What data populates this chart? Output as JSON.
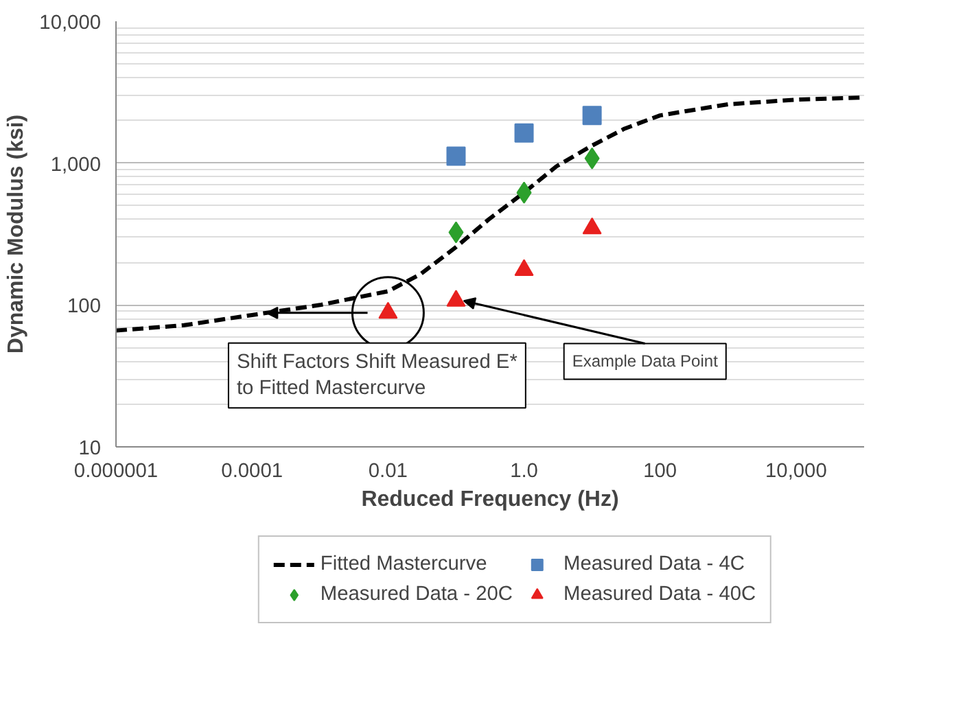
{
  "chart_data": {
    "type": "scatter",
    "xlabel": "Reduced Frequency (Hz)",
    "ylabel": "Dynamic Modulus (ksi)",
    "log": "xy",
    "grid": "y",
    "legend": "bottom",
    "xlim": [
      1e-06,
      100000
    ],
    "ylim": [
      10,
      10000
    ],
    "xticks": [
      {
        "value": 1e-06,
        "label": "0.000001"
      },
      {
        "value": 0.0001,
        "label": "0.0001"
      },
      {
        "value": 0.01,
        "label": "0.01"
      },
      {
        "value": 1,
        "label": "1.0"
      },
      {
        "value": 100,
        "label": "100"
      },
      {
        "value": 10000,
        "label": "10,000"
      }
    ],
    "yticks": [
      {
        "value": 10,
        "label": "10"
      },
      {
        "value": 100,
        "label": "100"
      },
      {
        "value": 1000,
        "label": "1,000"
      },
      {
        "value": 10000,
        "label": "10,000"
      }
    ],
    "series": [
      {
        "name": "Fitted Mastercurve",
        "type": "line",
        "line_style": "dashed",
        "marker": "none",
        "color": "#000000",
        "x": [
          1e-06,
          1e-05,
          0.0001,
          0.001,
          0.01,
          0.03,
          0.1,
          0.3,
          1,
          3,
          10,
          30,
          100,
          1000,
          10000,
          100000
        ],
        "values": [
          66,
          72,
          85,
          100,
          125,
          165,
          256,
          400,
          620,
          950,
          1330,
          1750,
          2170,
          2600,
          2800,
          2900
        ]
      },
      {
        "name": "Measured Data - 4C",
        "marker": "square",
        "color": "#4f81bd",
        "x": [
          0.1,
          1,
          10
        ],
        "values": [
          1120,
          1630,
          2170
        ]
      },
      {
        "name": "Measured Data - 20C",
        "marker": "diamond",
        "color": "#2ca02c",
        "x": [
          0.1,
          1,
          10
        ],
        "values": [
          325,
          620,
          1080
        ]
      },
      {
        "name": "Measured Data - 40C",
        "marker": "triangle",
        "color": "#e8201e",
        "x": [
          0.01,
          0.1,
          1,
          10
        ],
        "values": [
          88,
          107,
          176,
          347
        ]
      }
    ],
    "annotations": [
      {
        "text": "Shift Factors Shift Measured E* to Fitted Mastercurve",
        "x": 0.01,
        "y": 88
      },
      {
        "text": "Example Data Point",
        "x": 0.1,
        "y": 107
      }
    ]
  }
}
